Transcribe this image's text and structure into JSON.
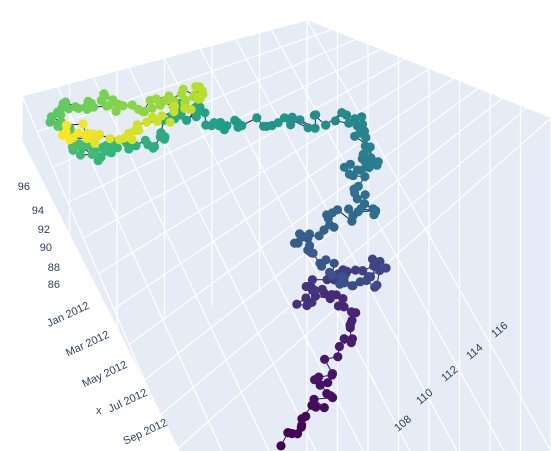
{
  "chart_data": {
    "type": "scatter3d",
    "mode": "lines+markers",
    "colorscale": "Viridis",
    "colorscale_stops": [
      "#440154",
      "#482878",
      "#3e4989",
      "#31688e",
      "#26828e",
      "#1f9e89",
      "#35b779",
      "#6ece58",
      "#b5de2b",
      "#fde725"
    ],
    "line_color": "#1a1a66",
    "pane_color": "#e5ecf6",
    "axes": {
      "x": {
        "title": "x",
        "tick_labels": [
          "Jan 2012",
          "Mar 2012",
          "May 2012",
          "Jul 2012",
          "Sep 2012"
        ],
        "range": [
          "2011-12-01",
          "2012-10-15"
        ]
      },
      "y": {
        "title": "",
        "tick_labels": [
          "108",
          "110",
          "112",
          "114",
          "116"
        ],
        "range": [
          106,
          117
        ]
      },
      "z": {
        "title": "",
        "tick_labels": [
          "86",
          "88",
          "90",
          "92",
          "94",
          "96"
        ],
        "range": [
          85,
          97
        ]
      }
    },
    "points_approx_count": 300
  }
}
